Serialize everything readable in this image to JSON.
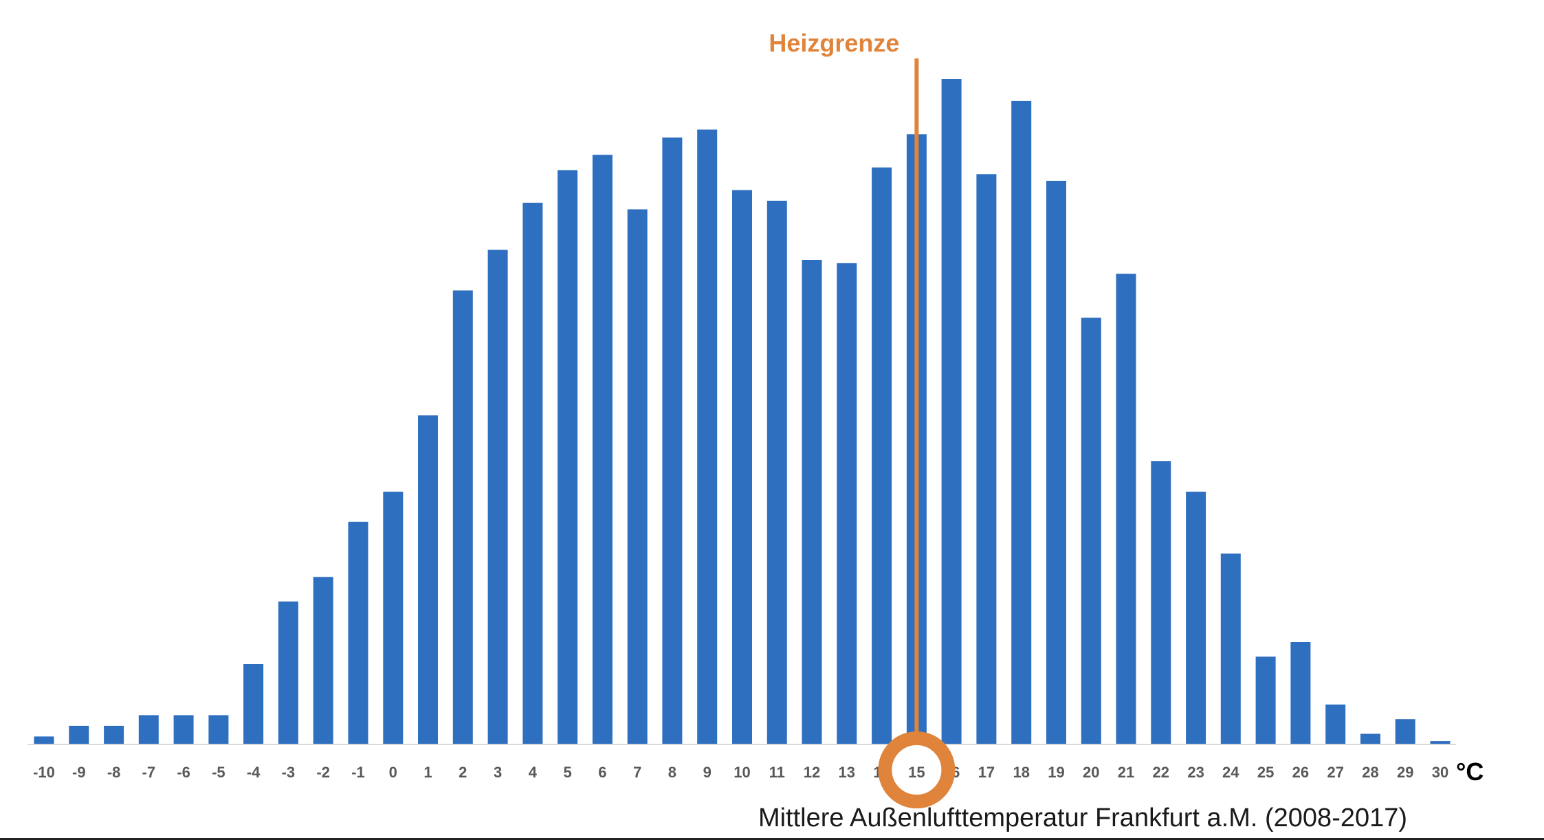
{
  "chart_data": {
    "type": "bar",
    "categories": [
      "-10",
      "-9",
      "-8",
      "-7",
      "-6",
      "-5",
      "-4",
      "-3",
      "-2",
      "-1",
      "0",
      "1",
      "2",
      "3",
      "4",
      "5",
      "6",
      "7",
      "8",
      "9",
      "10",
      "11",
      "12",
      "13",
      "14",
      "15",
      "16",
      "17",
      "18",
      "19",
      "20",
      "21",
      "22",
      "23",
      "24",
      "25",
      "26",
      "27",
      "28",
      "29",
      "30"
    ],
    "values": [
      1.1,
      2.7,
      2.7,
      4.3,
      4.3,
      4.3,
      12.0,
      21.4,
      25.1,
      33.4,
      37.9,
      49.4,
      68.2,
      74.3,
      81.4,
      86.3,
      88.6,
      80.4,
      91.2,
      92.4,
      83.3,
      81.7,
      72.8,
      72.3,
      86.7,
      91.7,
      100.0,
      85.7,
      96.7,
      84.7,
      64.1,
      70.7,
      42.5,
      37.9,
      28.6,
      13.1,
      15.3,
      5.9,
      1.5,
      3.7,
      0.4
    ],
    "ylim": [
      0,
      100
    ],
    "bar_color": "#2e6fc0",
    "xlabel": "Mittlere Außenlufttemperatur Frankfurt a.M. (2008-2017)",
    "unit": "°C",
    "grid": false,
    "legend": "none",
    "annotation": {
      "label": "Heizgrenze",
      "x": "15",
      "color": "#e0843c",
      "highlight": "circle around tick label 15"
    }
  }
}
